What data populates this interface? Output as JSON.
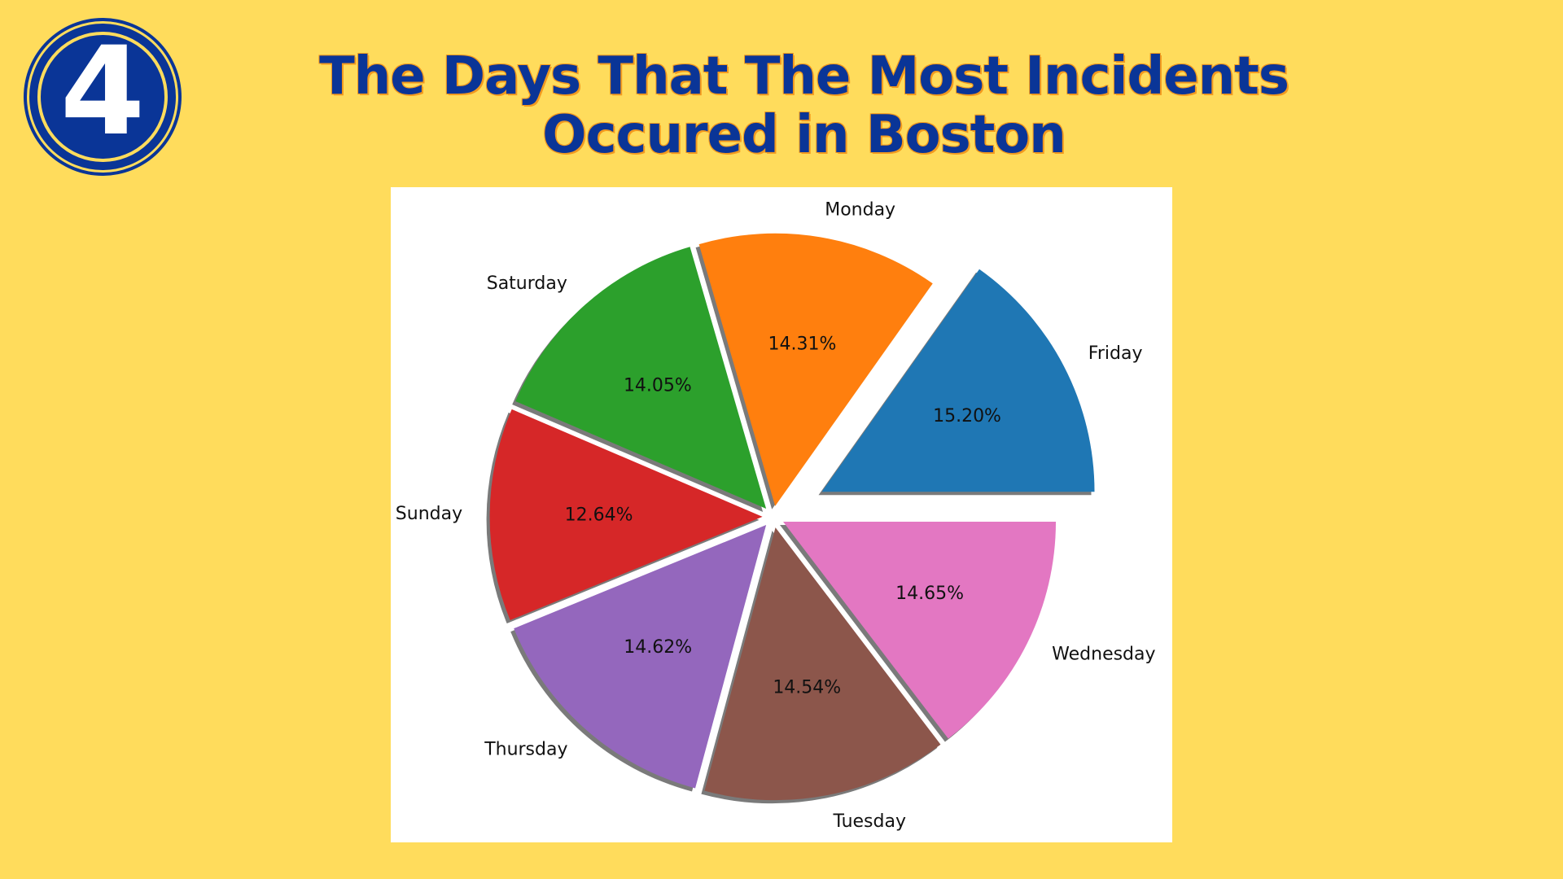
{
  "badge": {
    "number": "4"
  },
  "colors": {
    "background": "#FFDC5C",
    "title": "#0A3597",
    "title_outline": "#F39A1E"
  },
  "chart_data": {
    "type": "pie",
    "title": "The Days That The Most Incidents Occured in Boston",
    "categories": [
      "Friday",
      "Monday",
      "Saturday",
      "Sunday",
      "Thursday",
      "Tuesday",
      "Wednesday"
    ],
    "values": [
      15.2,
      14.31,
      14.05,
      12.64,
      14.62,
      14.54,
      14.65
    ],
    "value_labels": [
      "15.20%",
      "14.31%",
      "14.05%",
      "12.64%",
      "14.62%",
      "14.54%",
      "14.65%"
    ],
    "colors": [
      "#1f77b4",
      "#ff7f0e",
      "#2ca02c",
      "#d62728",
      "#9467bd",
      "#8c564b",
      "#e377c2"
    ],
    "exploded": [
      "Friday"
    ],
    "start_angle_deg": 0,
    "direction": "counterclockwise",
    "shadow": true,
    "legend": "none"
  }
}
